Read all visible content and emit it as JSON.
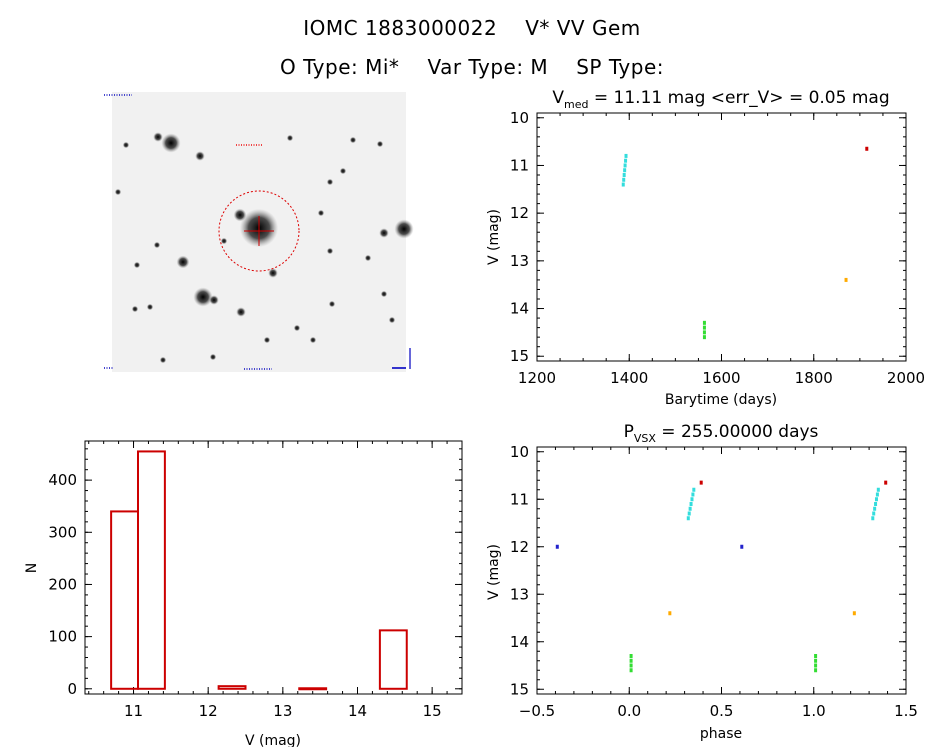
{
  "header": {
    "star_id": "IOMC 1883000022",
    "star_name": "V* VV Gem",
    "o_type": "O Type: Mi*",
    "var_type": "Var Type: M",
    "sp_type": "SP Type:"
  },
  "colors": {
    "histogram": "#cc0000",
    "cyan": "#33dddd",
    "green": "#33dd33",
    "red": "#cc0000",
    "orange": "#ffaa00",
    "blue": "#2222cc",
    "sky_circle": "#dd0000",
    "sky_label_blue": "#3333cc"
  },
  "chart_data": [
    {
      "type": "scatter",
      "id": "lightcurve",
      "title_prefix": "V",
      "title_sub": "med",
      "title_rest": " = 11.11 mag <err_V> = 0.05 mag",
      "xlabel": "Barytime (days)",
      "ylabel": "V (mag)",
      "xlim": [
        1200,
        2000
      ],
      "ylim": [
        15.1,
        9.9
      ],
      "y_inverted": true,
      "xticks": [
        1200,
        1400,
        1600,
        1800,
        2000
      ],
      "yticks": [
        10,
        11,
        12,
        13,
        14,
        15
      ],
      "series": [
        {
          "color": "cyan",
          "points": [
            [
              1387,
              11.4
            ],
            [
              1388,
              11.3
            ],
            [
              1389,
              11.2
            ],
            [
              1390,
              11.1
            ],
            [
              1391,
              11.0
            ],
            [
              1392,
              10.9
            ],
            [
              1393,
              10.8
            ]
          ]
        },
        {
          "color": "green",
          "points": [
            [
              1563,
              14.3
            ],
            [
              1563,
              14.4
            ],
            [
              1563,
              14.5
            ],
            [
              1563,
              14.6
            ]
          ]
        },
        {
          "color": "red",
          "points": [
            [
              1915,
              10.65
            ]
          ]
        },
        {
          "color": "orange",
          "points": [
            [
              1870,
              13.4
            ]
          ]
        }
      ]
    },
    {
      "type": "scatter",
      "id": "phased",
      "title_prefix": "P",
      "title_sub": "VSX",
      "title_rest": " = 255.00000 days",
      "xlabel": "phase",
      "ylabel": "V (mag)",
      "xlim": [
        -0.5,
        1.5
      ],
      "ylim": [
        15.1,
        9.9
      ],
      "y_inverted": true,
      "xticks": [
        "−0.5",
        "0.0",
        "0.5",
        "1.0",
        "1.5"
      ],
      "xtick_values": [
        -0.5,
        0.0,
        0.5,
        1.0,
        1.5
      ],
      "yticks": [
        10,
        11,
        12,
        13,
        14,
        15
      ],
      "series": [
        {
          "color": "cyan",
          "points": [
            [
              0.32,
              11.4
            ],
            [
              0.325,
              11.3
            ],
            [
              0.33,
              11.2
            ],
            [
              0.335,
              11.1
            ],
            [
              0.34,
              11.0
            ],
            [
              0.345,
              10.9
            ],
            [
              0.35,
              10.8
            ],
            [
              1.32,
              11.4
            ],
            [
              1.325,
              11.3
            ],
            [
              1.33,
              11.2
            ],
            [
              1.335,
              11.1
            ],
            [
              1.34,
              11.0
            ],
            [
              1.345,
              10.9
            ],
            [
              1.35,
              10.8
            ]
          ]
        },
        {
          "color": "green",
          "points": [
            [
              0.01,
              14.3
            ],
            [
              0.01,
              14.4
            ],
            [
              0.01,
              14.5
            ],
            [
              0.01,
              14.6
            ],
            [
              1.01,
              14.3
            ],
            [
              1.01,
              14.4
            ],
            [
              1.01,
              14.5
            ],
            [
              1.01,
              14.6
            ]
          ]
        },
        {
          "color": "red",
          "points": [
            [
              0.39,
              10.65
            ],
            [
              1.39,
              10.65
            ]
          ]
        },
        {
          "color": "orange",
          "points": [
            [
              0.22,
              13.4
            ],
            [
              1.22,
              13.4
            ]
          ]
        },
        {
          "color": "blue",
          "points": [
            [
              -0.39,
              12.0
            ],
            [
              0.61,
              12.0
            ]
          ]
        }
      ]
    },
    {
      "type": "bar",
      "id": "histogram",
      "xlabel": "V (mag)",
      "ylabel": "N",
      "xlim": [
        10.35,
        15.4
      ],
      "ylim": [
        -10,
        475
      ],
      "xticks": [
        11,
        12,
        13,
        14,
        15
      ],
      "yticks": [
        0,
        100,
        200,
        300,
        400
      ],
      "bins": [
        {
          "x0": 10.7,
          "x1": 11.06,
          "n": 340
        },
        {
          "x0": 11.06,
          "x1": 11.42,
          "n": 455
        },
        {
          "x0": 11.42,
          "x1": 11.78,
          "n": 0
        },
        {
          "x0": 11.78,
          "x1": 12.14,
          "n": 0
        },
        {
          "x0": 12.14,
          "x1": 12.5,
          "n": 5
        },
        {
          "x0": 12.5,
          "x1": 12.86,
          "n": 0
        },
        {
          "x0": 12.86,
          "x1": 13.22,
          "n": 0
        },
        {
          "x0": 13.22,
          "x1": 13.58,
          "n": 1
        },
        {
          "x0": 13.58,
          "x1": 13.94,
          "n": 0
        },
        {
          "x0": 13.94,
          "x1": 14.3,
          "n": 0
        },
        {
          "x0": 14.3,
          "x1": 14.66,
          "n": 112
        }
      ]
    }
  ]
}
